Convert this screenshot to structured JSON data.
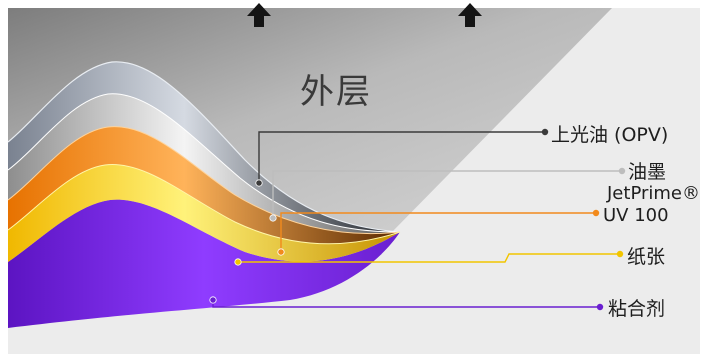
{
  "diagram": {
    "title": "外层",
    "layers": [
      {
        "label": "上光油 (OPV)",
        "color": "#3b3b3b",
        "icon": "dot"
      },
      {
        "label": "油墨",
        "color": "#bdbdbd",
        "icon": "dot"
      },
      {
        "label_line1": "JetPrime®",
        "label_line2": "UV 100",
        "color": "#f28a1c",
        "icon": "dot"
      },
      {
        "label": "纸张",
        "color": "#f2c500",
        "icon": "dot"
      },
      {
        "label": "粘合剂",
        "color": "#6a1fd0",
        "icon": "dot"
      }
    ],
    "icons": [
      "arrow-up-icon",
      "arrow-up-icon"
    ],
    "colors": {
      "background_light": "#ececec",
      "outer_panel": "#9a9a9a",
      "purple": "#7b2ff0",
      "yellow": "#ffd600",
      "orange": "#f28a1c",
      "silver": "#c9c9c9",
      "dark": "#4a4f57"
    }
  }
}
